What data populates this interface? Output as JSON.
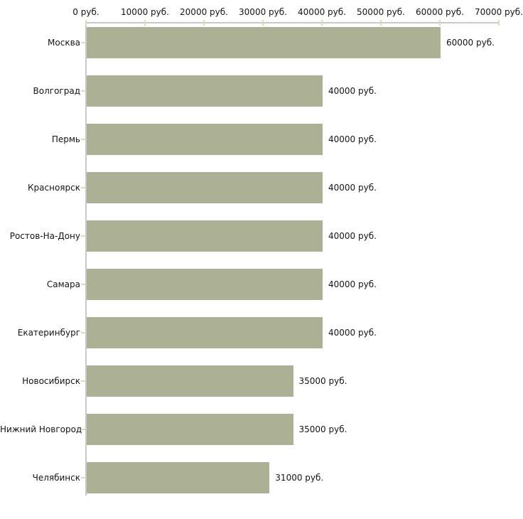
{
  "chart_data": {
    "type": "bar",
    "orientation": "horizontal",
    "title": "",
    "xlabel": "",
    "ylabel": "",
    "unit": "руб.",
    "categories": [
      "Москва",
      "Волгоград",
      "Пермь",
      "Красноярск",
      "Ростов-На-Дону",
      "Самара",
      "Екатеринбург",
      "Новосибирск",
      "Нижний Новгород",
      "Челябинск"
    ],
    "values": [
      60000,
      40000,
      40000,
      40000,
      40000,
      40000,
      40000,
      35000,
      35000,
      31000
    ],
    "value_labels": [
      "60000 руб.",
      "40000 руб.",
      "40000 руб.",
      "40000 руб.",
      "40000 руб.",
      "40000 руб.",
      "40000 руб.",
      "35000 руб.",
      "35000 руб.",
      "31000 руб."
    ],
    "x_tick_values": [
      0,
      10000,
      20000,
      30000,
      40000,
      50000,
      60000,
      70000
    ],
    "x_tick_labels": [
      "0 руб.",
      "10000 руб.",
      "20000 руб.",
      "30000 руб.",
      "40000 руб.",
      "50000 руб.",
      "60000 руб.",
      "70000 руб."
    ],
    "xlim": [
      0,
      70000
    ],
    "grid": false,
    "legend": null,
    "colors": {
      "bar": "#acb196",
      "axis_line": "#c9c9c9",
      "tick_mark": "#d9ddb5",
      "text": "#141414",
      "background": "#ffffff"
    }
  }
}
